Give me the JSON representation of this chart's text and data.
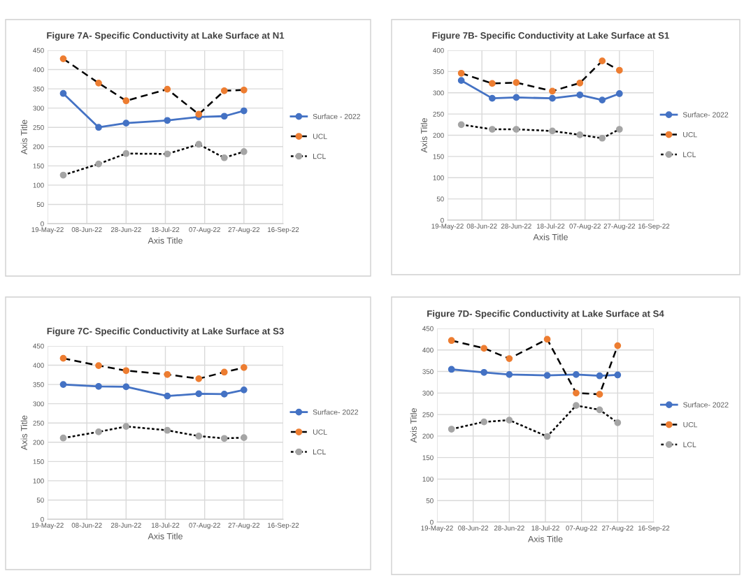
{
  "chart_data": [
    {
      "type": "line",
      "title": "Figure 7A- Specific Conductivity at Lake Surface at N1",
      "xlabel": "Axis Title",
      "ylabel": "Axis Title",
      "x": [
        "2022-05-27",
        "2022-06-14",
        "2022-06-28",
        "2022-07-19",
        "2022-08-04",
        "2022-08-17",
        "2022-08-27"
      ],
      "series": [
        {
          "name": "Surface - 2022",
          "color": "#4472c4",
          "line_style": "solid",
          "values": [
            338,
            250,
            261,
            268,
            277,
            279,
            293
          ]
        },
        {
          "name": "UCL",
          "color": "#ed7d31",
          "line_style": "dashed",
          "values": [
            428,
            365,
            319,
            349,
            284,
            345,
            347
          ]
        },
        {
          "name": "LCL",
          "color": "#a5a5a5",
          "line_style": "dotted",
          "values": [
            126,
            155,
            182,
            181,
            206,
            171,
            187
          ]
        }
      ],
      "xlim": [
        "2022-05-19",
        "2022-09-16"
      ],
      "xticks": [
        {
          "value": "2022-05-19",
          "label": "19-May-22"
        },
        {
          "value": "2022-06-08",
          "label": "08-Jun-22"
        },
        {
          "value": "2022-06-28",
          "label": "28-Jun-22"
        },
        {
          "value": "2022-07-18",
          "label": "18-Jul-22"
        },
        {
          "value": "2022-08-07",
          "label": "07-Aug-22"
        },
        {
          "value": "2022-08-27",
          "label": "27-Aug-22"
        },
        {
          "value": "2022-09-16",
          "label": "16-Sep-22"
        }
      ],
      "ylim": [
        0,
        450
      ],
      "yticks": [
        0,
        50,
        100,
        150,
        200,
        250,
        300,
        350,
        400,
        450
      ],
      "grid": true,
      "legend": "right",
      "marker": "circle"
    },
    {
      "type": "line",
      "title": "Figure 7B- Specific Conductivity at Lake Surface at S1",
      "xlabel": "Axis Title",
      "ylabel": "Axis Title",
      "x": [
        "2022-05-27",
        "2022-06-14",
        "2022-06-28",
        "2022-07-19",
        "2022-08-04",
        "2022-08-17",
        "2022-08-27"
      ],
      "series": [
        {
          "name": "Surface- 2022",
          "color": "#4472c4",
          "line_style": "solid",
          "values": [
            329,
            287,
            289,
            287,
            295,
            283,
            298
          ]
        },
        {
          "name": "UCL",
          "color": "#ed7d31",
          "line_style": "dashed",
          "values": [
            346,
            322,
            324,
            304,
            323,
            375,
            353
          ]
        },
        {
          "name": "LCL",
          "color": "#a5a5a5",
          "line_style": "dotted",
          "values": [
            225,
            214,
            214,
            210,
            201,
            193,
            214
          ]
        }
      ],
      "xlim": [
        "2022-05-19",
        "2022-09-16"
      ],
      "xticks": [
        {
          "value": "2022-05-19",
          "label": "19-May-22"
        },
        {
          "value": "2022-06-08",
          "label": "08-Jun-22"
        },
        {
          "value": "2022-06-28",
          "label": "28-Jun-22"
        },
        {
          "value": "2022-07-18",
          "label": "18-Jul-22"
        },
        {
          "value": "2022-08-07",
          "label": "07-Aug-22"
        },
        {
          "value": "2022-08-27",
          "label": "27-Aug-22"
        },
        {
          "value": "2022-09-16",
          "label": "16-Sep-22"
        }
      ],
      "ylim": [
        0,
        400
      ],
      "yticks": [
        0,
        50,
        100,
        150,
        200,
        250,
        300,
        350,
        400
      ],
      "grid": true,
      "legend": "right",
      "marker": "circle"
    },
    {
      "type": "line",
      "title": "Figure 7C- Specific Conductivity at Lake Surface at S3",
      "xlabel": "Axis Title",
      "ylabel": "Axis Title",
      "x": [
        "2022-05-27",
        "2022-06-14",
        "2022-06-28",
        "2022-07-19",
        "2022-08-04",
        "2022-08-17",
        "2022-08-27"
      ],
      "series": [
        {
          "name": "Surface- 2022",
          "color": "#4472c4",
          "line_style": "solid",
          "values": [
            350,
            345,
            344,
            320,
            326,
            325,
            336
          ]
        },
        {
          "name": "UCL",
          "color": "#ed7d31",
          "line_style": "dashed",
          "values": [
            418,
            399,
            386,
            376,
            365,
            382,
            394
          ]
        },
        {
          "name": "LCL",
          "color": "#a5a5a5",
          "line_style": "dotted",
          "values": [
            211,
            227,
            241,
            231,
            216,
            210,
            212
          ]
        }
      ],
      "xlim": [
        "2022-05-19",
        "2022-09-16"
      ],
      "xticks": [
        {
          "value": "2022-05-19",
          "label": "19-May-22"
        },
        {
          "value": "2022-06-08",
          "label": "08-Jun-22"
        },
        {
          "value": "2022-06-28",
          "label": "28-Jun-22"
        },
        {
          "value": "2022-07-18",
          "label": "18-Jul-22"
        },
        {
          "value": "2022-08-07",
          "label": "07-Aug-22"
        },
        {
          "value": "2022-08-27",
          "label": "27-Aug-22"
        },
        {
          "value": "2022-09-16",
          "label": "16-Sep-22"
        }
      ],
      "ylim": [
        0,
        450
      ],
      "yticks": [
        0,
        50,
        100,
        150,
        200,
        250,
        300,
        350,
        400,
        450
      ],
      "grid": true,
      "legend": "right",
      "marker": "circle"
    },
    {
      "type": "line",
      "title": "Figure 7D- Specific Conductivity at Lake Surface at S4",
      "xlabel": "Axis Title",
      "ylabel": "Axis Title",
      "x": [
        "2022-05-27",
        "2022-06-14",
        "2022-06-28",
        "2022-07-19",
        "2022-08-04",
        "2022-08-17",
        "2022-08-27"
      ],
      "series": [
        {
          "name": "Surface- 2022",
          "color": "#4472c4",
          "line_style": "solid",
          "values": [
            355,
            348,
            343,
            341,
            343,
            340,
            342
          ]
        },
        {
          "name": "UCL",
          "color": "#ed7d31",
          "line_style": "dashed",
          "values": [
            422,
            404,
            380,
            425,
            300,
            297,
            410
          ]
        },
        {
          "name": "LCL",
          "color": "#a5a5a5",
          "line_style": "dotted",
          "values": [
            216,
            233,
            237,
            199,
            271,
            261,
            231
          ]
        }
      ],
      "xlim": [
        "2022-05-19",
        "2022-09-16"
      ],
      "xticks": [
        {
          "value": "2022-05-19",
          "label": "19-May-22"
        },
        {
          "value": "2022-06-08",
          "label": "08-Jun-22"
        },
        {
          "value": "2022-06-28",
          "label": "28-Jun-22"
        },
        {
          "value": "2022-07-18",
          "label": "18-Jul-22"
        },
        {
          "value": "2022-08-07",
          "label": "07-Aug-22"
        },
        {
          "value": "2022-08-27",
          "label": "27-Aug-22"
        },
        {
          "value": "2022-09-16",
          "label": "16-Sep-22"
        }
      ],
      "ylim": [
        0,
        450
      ],
      "yticks": [
        0,
        50,
        100,
        150,
        200,
        250,
        300,
        350,
        400,
        450
      ],
      "grid": true,
      "legend": "right",
      "marker": "circle"
    }
  ]
}
